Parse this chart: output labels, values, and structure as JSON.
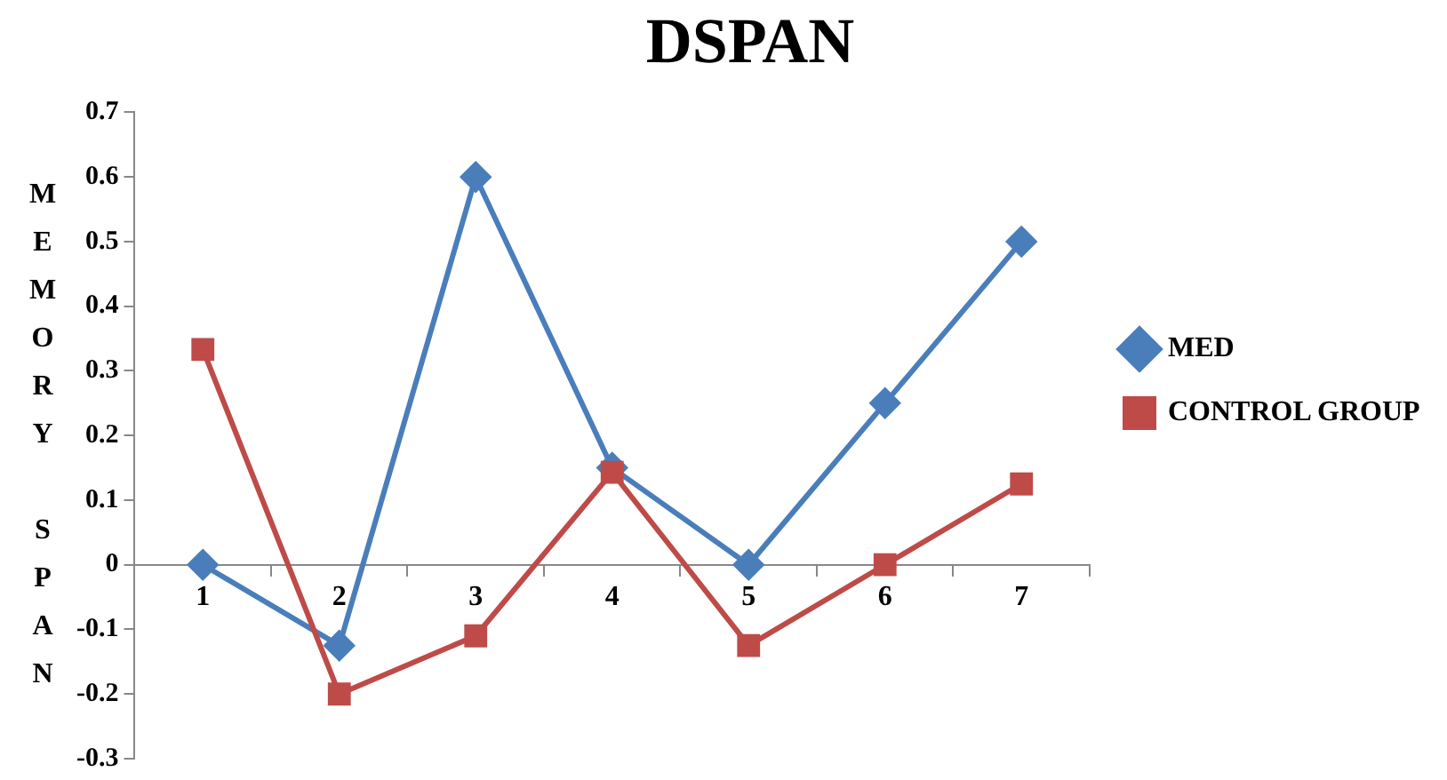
{
  "chart_data": {
    "type": "line",
    "title": "DSPAN",
    "ylabel": "MEMORY SPAN",
    "categories": [
      "1",
      "2",
      "3",
      "4",
      "5",
      "6",
      "7"
    ],
    "series": [
      {
        "name": "MED",
        "color": "#4a7ebb",
        "marker": "diamond",
        "values": [
          0,
          -0.125,
          0.6,
          0.15,
          0,
          0.25,
          0.5
        ]
      },
      {
        "name": "CONTROL GROUP",
        "color": "#be4b48",
        "marker": "square",
        "values": [
          0.333,
          -0.2,
          -0.11,
          0.143,
          -0.125,
          0,
          0.125
        ]
      }
    ],
    "ylim": [
      -0.3,
      0.7
    ],
    "yticks": [
      -0.3,
      -0.2,
      -0.1,
      0,
      0.1,
      0.2,
      0.3,
      0.4,
      0.5,
      0.6,
      0.7
    ],
    "grid": false,
    "legend": "right"
  }
}
